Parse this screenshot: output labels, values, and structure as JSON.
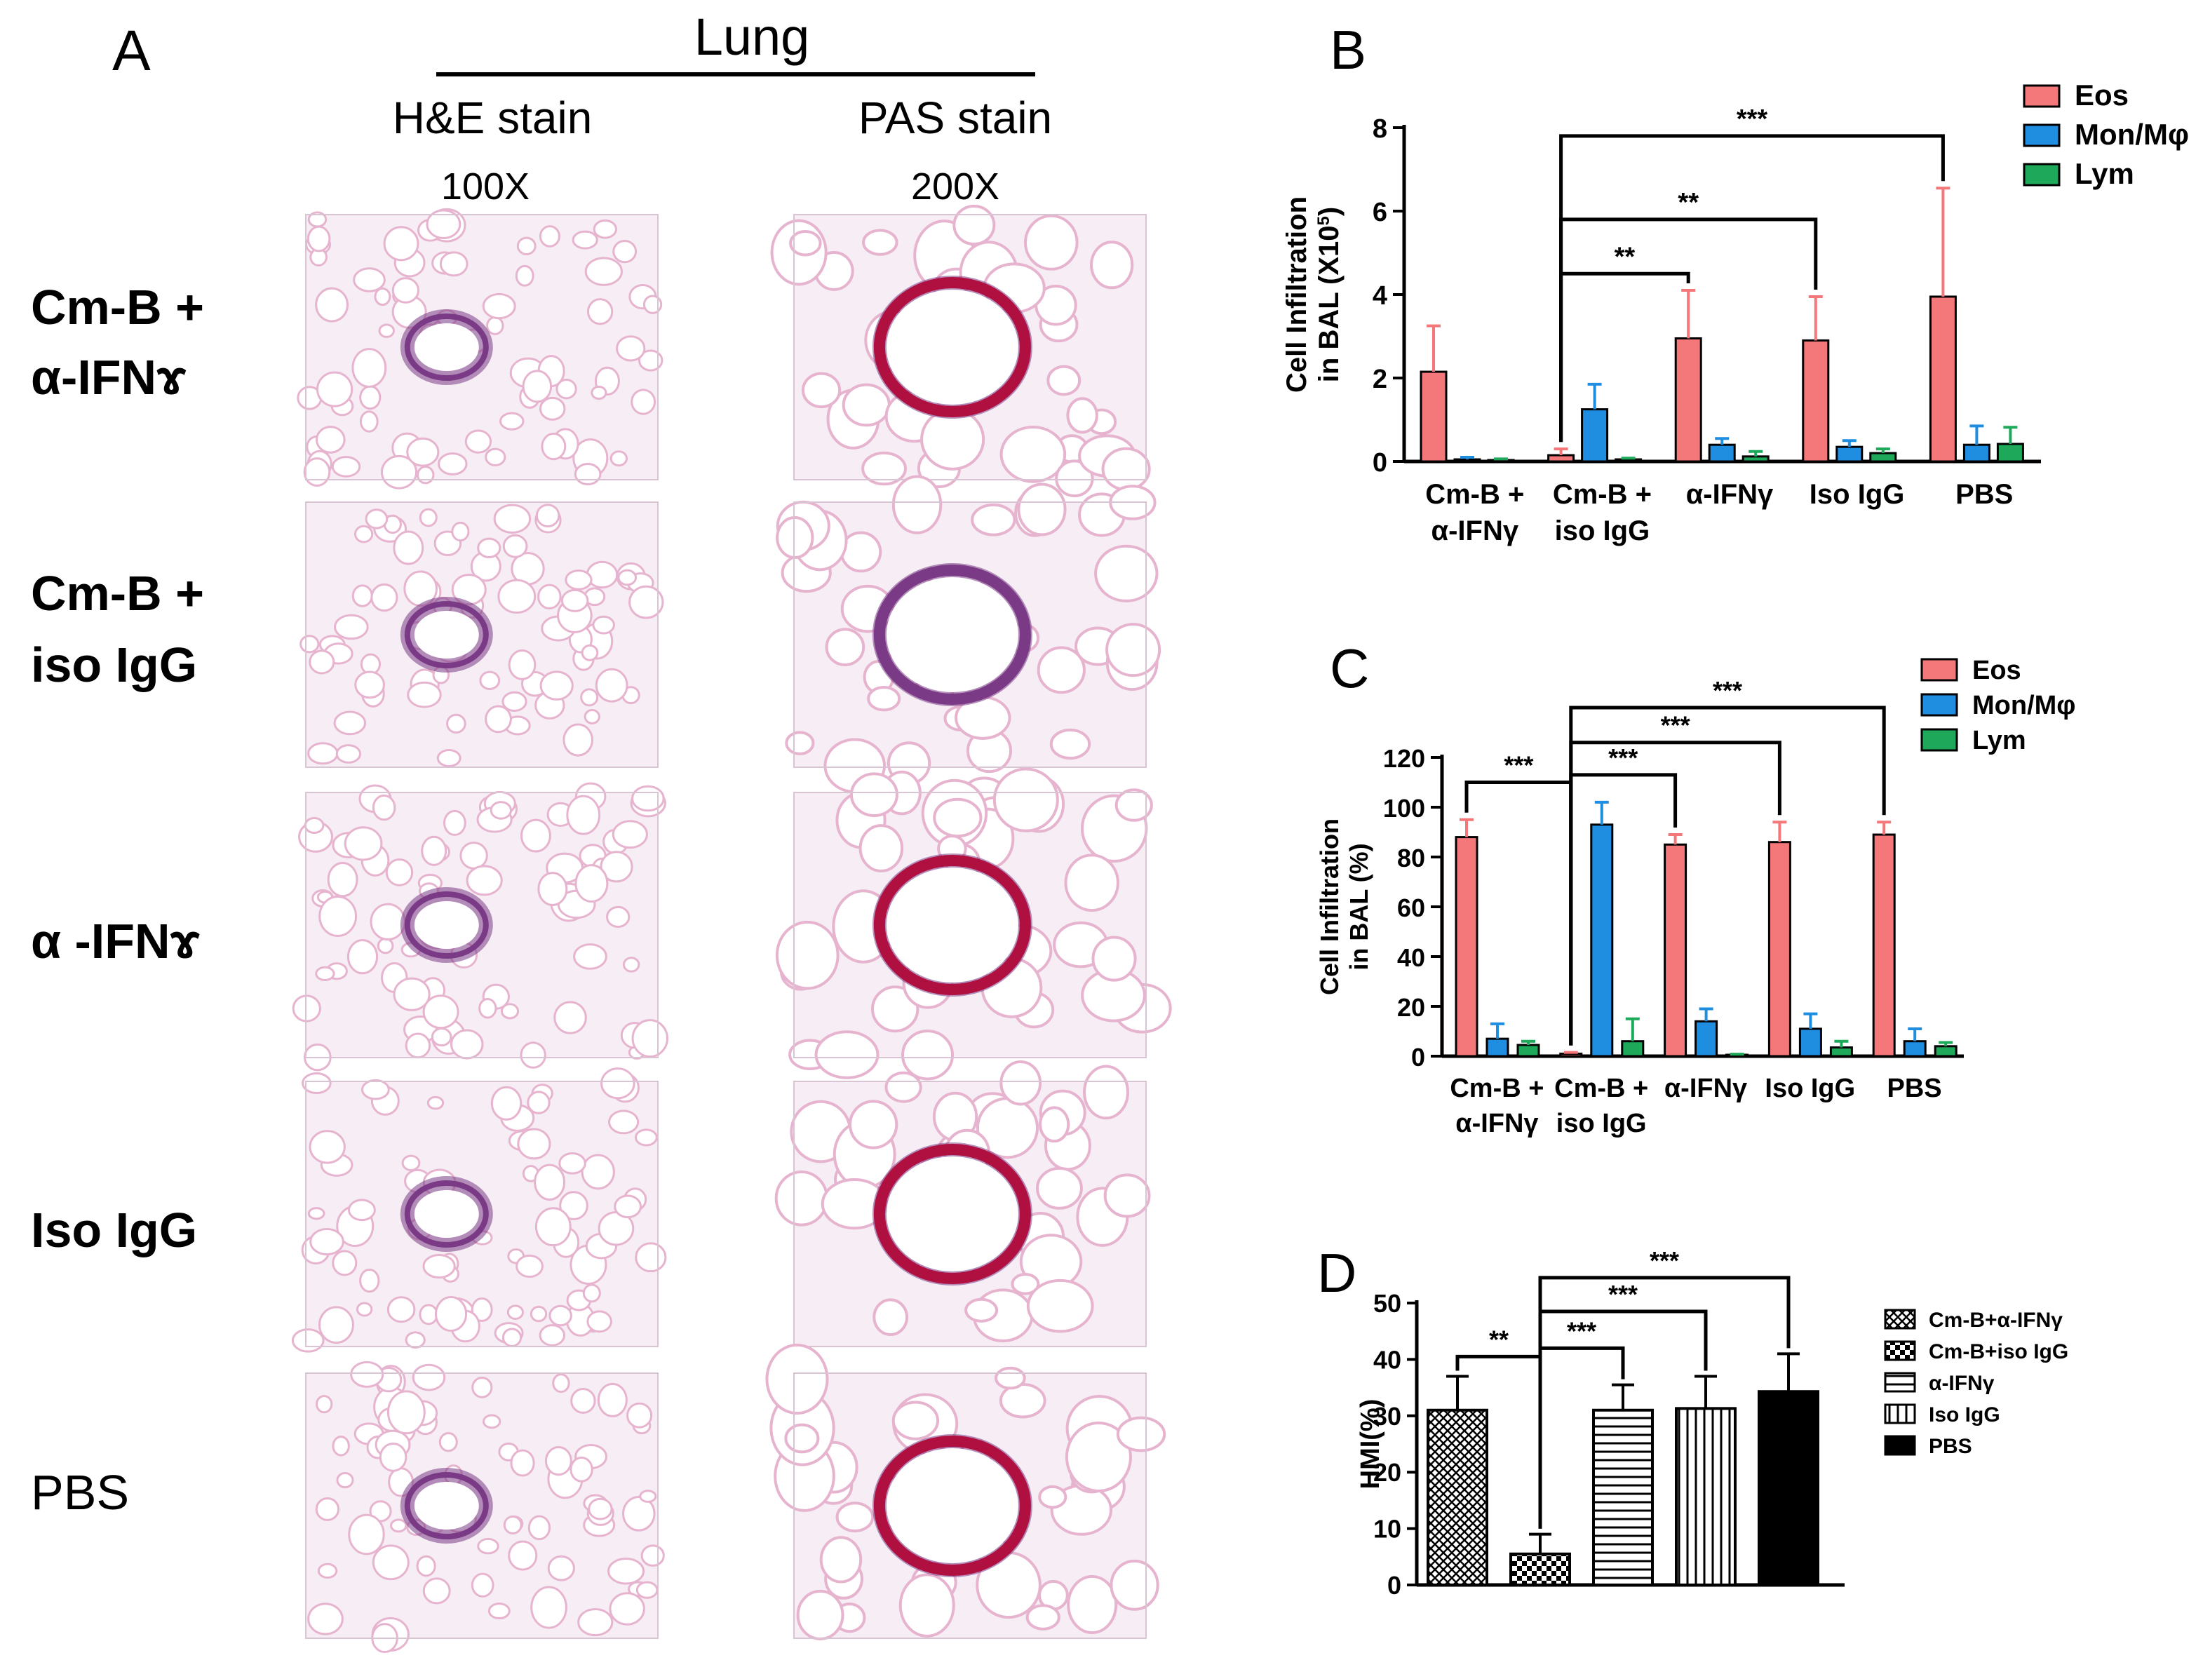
{
  "colors": {
    "eos": "#F4777A",
    "mon": "#1F8DE0",
    "lym": "#1EA85A",
    "stain_pink": "#E7B4CF",
    "stain_purple": "#7A3A86",
    "stain_red": "#B01040",
    "background": "#FFFFFF"
  },
  "panel_a": {
    "letter": "A",
    "tissue_title": "Lung",
    "columns": [
      {
        "stain": "H&E stain",
        "magnification": "100X"
      },
      {
        "stain": "PAS stain",
        "magnification": "200X"
      }
    ],
    "rows": [
      {
        "label_line1": "Cm-B +",
        "label_line2": "α-IFNɤ"
      },
      {
        "label_line1": "Cm-B +",
        "label_line2": "iso IgG"
      },
      {
        "label_line1": "α -IFNɤ",
        "label_line2": ""
      },
      {
        "label_line1": "Iso IgG",
        "label_line2": ""
      },
      {
        "label_line1": "PBS",
        "label_line2": ""
      }
    ]
  },
  "chart_data": [
    {
      "panel": "B",
      "type": "bar",
      "ylabel_line1": "Cell Infiltration",
      "ylabel_line2": "in BAL (X10",
      "ylabel_sup": "5",
      "ylabel_end": ")",
      "ylim": [
        0,
        8
      ],
      "yticks": [
        "0",
        "2",
        "4",
        "6",
        "8"
      ],
      "categories": [
        {
          "line1": "Cm-B +",
          "line2": "α-IFNγ"
        },
        {
          "line1": "Cm-B +",
          "line2": "iso IgG"
        },
        {
          "line1": "α-IFNγ",
          "line2": ""
        },
        {
          "line1": "Iso IgG",
          "line2": ""
        },
        {
          "line1": "PBS",
          "line2": ""
        }
      ],
      "series": [
        {
          "name": "Eos",
          "values": [
            2.15,
            0.15,
            2.95,
            2.9,
            3.95
          ],
          "errors": [
            1.1,
            0.15,
            1.15,
            1.05,
            2.6
          ]
        },
        {
          "name": "Mon/Mφ",
          "values": [
            0.05,
            1.25,
            0.4,
            0.35,
            0.4
          ],
          "errors": [
            0.05,
            0.6,
            0.15,
            0.15,
            0.45
          ]
        },
        {
          "name": "Lym",
          "values": [
            0.03,
            0.05,
            0.12,
            0.2,
            0.42
          ],
          "errors": [
            0.03,
            0.03,
            0.12,
            0.1,
            0.4
          ]
        }
      ],
      "significance": [
        {
          "from": 1,
          "to": 2,
          "y": 4.5,
          "label": "**"
        },
        {
          "from": 1,
          "to": 3,
          "y": 5.8,
          "label": "**"
        },
        {
          "from": 1,
          "to": 4,
          "y": 7.8,
          "label": "***"
        }
      ]
    },
    {
      "panel": "C",
      "type": "bar",
      "ylabel_line1": "Cell Infiltration",
      "ylabel_line2": "in BAL (%)",
      "ylim": [
        0,
        120
      ],
      "yticks": [
        "0",
        "20",
        "40",
        "60",
        "80",
        "100",
        "120"
      ],
      "categories": [
        {
          "line1": "Cm-B +",
          "line2": "α-IFNγ"
        },
        {
          "line1": "Cm-B +",
          "line2": "iso IgG"
        },
        {
          "line1": "α-IFNγ",
          "line2": ""
        },
        {
          "line1": "Iso IgG",
          "line2": ""
        },
        {
          "line1": "PBS",
          "line2": ""
        }
      ],
      "series": [
        {
          "name": "Eos",
          "values": [
            88,
            1,
            85,
            86,
            89
          ],
          "errors": [
            7,
            0.5,
            4,
            8,
            5
          ]
        },
        {
          "name": "Mon/Mφ",
          "values": [
            7,
            93,
            14,
            11,
            6
          ],
          "errors": [
            6,
            9,
            5,
            6,
            5
          ]
        },
        {
          "name": "Lym",
          "values": [
            4.5,
            6,
            0.5,
            3.5,
            4
          ],
          "errors": [
            1.5,
            9,
            0.3,
            2.5,
            1.5
          ]
        }
      ],
      "significance": [
        {
          "from": 0,
          "to": 1,
          "y": 110,
          "label": "***"
        },
        {
          "from": 1,
          "to": 2,
          "y": 113,
          "label": "***"
        },
        {
          "from": 1,
          "to": 3,
          "y": 126,
          "label": "***"
        },
        {
          "from": 1,
          "to": 4,
          "y": 140,
          "label": "***"
        }
      ]
    },
    {
      "panel": "D",
      "type": "bar",
      "ylabel": "HMI(%)",
      "ylim": [
        0,
        50
      ],
      "yticks": [
        "0",
        "10",
        "20",
        "30",
        "40",
        "50"
      ],
      "series": [
        {
          "name": "Cm-B+α-IFNγ",
          "value": 31,
          "error": 6,
          "pattern": "crosshatch"
        },
        {
          "name": "Cm-B+iso IgG",
          "value": 5.5,
          "error": 3.5,
          "pattern": "checker"
        },
        {
          "name": "α-IFNγ",
          "value": 31,
          "error": 4.5,
          "pattern": "horizontal"
        },
        {
          "name": "Iso IgG",
          "value": 31.3,
          "error": 5.7,
          "pattern": "vertical"
        },
        {
          "name": "PBS",
          "value": 34.3,
          "error": 6.7,
          "pattern": "solid"
        }
      ],
      "significance": [
        {
          "from": 0,
          "to": 1,
          "y": 40.5,
          "label": "**"
        },
        {
          "from": 1,
          "to": 2,
          "y": 42,
          "label": "***"
        },
        {
          "from": 1,
          "to": 3,
          "y": 48.5,
          "label": "***"
        },
        {
          "from": 1,
          "to": 4,
          "y": 54.5,
          "label": "***"
        }
      ]
    }
  ]
}
